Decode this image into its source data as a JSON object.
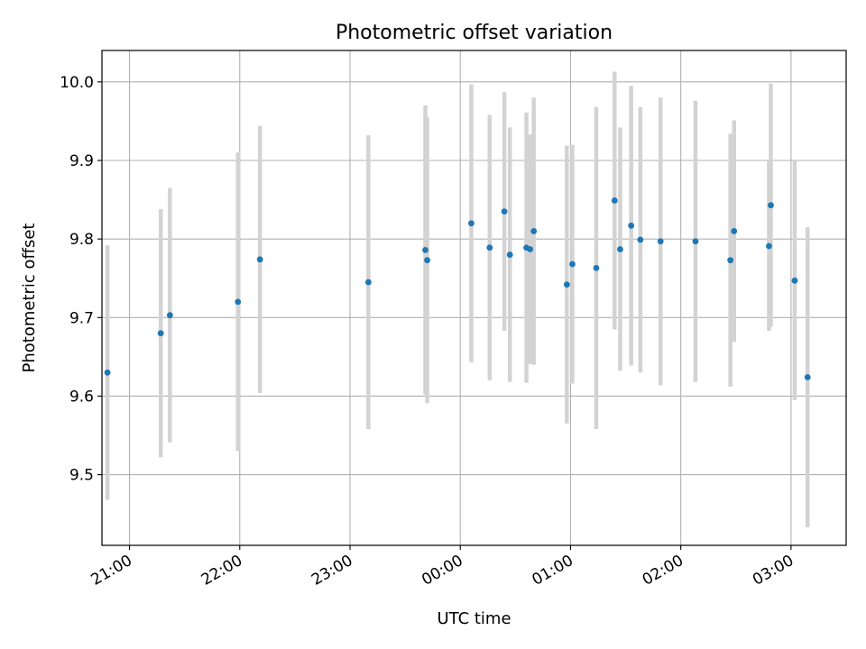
{
  "chart_data": {
    "type": "scatter",
    "title": "Photometric offset variation",
    "xlabel": "UTC time",
    "ylabel": "Photometric offset",
    "xlim": [
      "20:45",
      "03:30"
    ],
    "ylim": [
      9.41,
      10.04
    ],
    "x_ticks": [
      "21:00",
      "22:00",
      "23:00",
      "00:00",
      "01:00",
      "02:00",
      "03:00"
    ],
    "y_ticks": [
      "9.5",
      "9.6",
      "9.7",
      "9.8",
      "9.9",
      "10.0"
    ],
    "grid": true,
    "colors": {
      "point": "#1f77b4",
      "errorbar": "#d3d3d3",
      "grid": "#b0b0b0"
    },
    "points": [
      {
        "x": "20:48",
        "y": 9.63,
        "yerr": 0.162
      },
      {
        "x": "21:17",
        "y": 9.68,
        "yerr": 0.158
      },
      {
        "x": "21:22",
        "y": 9.703,
        "yerr": 0.162
      },
      {
        "x": "21:59",
        "y": 9.72,
        "yerr": 0.19
      },
      {
        "x": "22:11",
        "y": 9.774,
        "yerr": 0.17
      },
      {
        "x": "23:10",
        "y": 9.745,
        "yerr": 0.187
      },
      {
        "x": "23:41",
        "y": 9.786,
        "yerr": 0.184
      },
      {
        "x": "23:42",
        "y": 9.773,
        "yerr": 0.182
      },
      {
        "x": "00:06",
        "y": 9.82,
        "yerr": 0.177
      },
      {
        "x": "00:16",
        "y": 9.789,
        "yerr": 0.169
      },
      {
        "x": "00:24",
        "y": 9.835,
        "yerr": 0.152
      },
      {
        "x": "00:27",
        "y": 9.78,
        "yerr": 0.162
      },
      {
        "x": "00:36",
        "y": 9.789,
        "yerr": 0.172
      },
      {
        "x": "00:38",
        "y": 9.787,
        "yerr": 0.146
      },
      {
        "x": "00:40",
        "y": 9.81,
        "yerr": 0.17
      },
      {
        "x": "00:58",
        "y": 9.742,
        "yerr": 0.177
      },
      {
        "x": "01:01",
        "y": 9.768,
        "yerr": 0.152
      },
      {
        "x": "01:14",
        "y": 9.763,
        "yerr": 0.205
      },
      {
        "x": "01:24",
        "y": 9.849,
        "yerr": 0.164
      },
      {
        "x": "01:27",
        "y": 9.787,
        "yerr": 0.155
      },
      {
        "x": "01:33",
        "y": 9.817,
        "yerr": 0.178
      },
      {
        "x": "01:38",
        "y": 9.799,
        "yerr": 0.169
      },
      {
        "x": "01:49",
        "y": 9.797,
        "yerr": 0.183
      },
      {
        "x": "02:08",
        "y": 9.797,
        "yerr": 0.179
      },
      {
        "x": "02:27",
        "y": 9.773,
        "yerr": 0.161
      },
      {
        "x": "02:29",
        "y": 9.81,
        "yerr": 0.141
      },
      {
        "x": "02:48",
        "y": 9.791,
        "yerr": 0.108
      },
      {
        "x": "02:49",
        "y": 9.843,
        "yerr": 0.155
      },
      {
        "x": "03:02",
        "y": 9.747,
        "yerr": 0.152
      },
      {
        "x": "03:09",
        "y": 9.624,
        "yerr": 0.191
      }
    ]
  }
}
